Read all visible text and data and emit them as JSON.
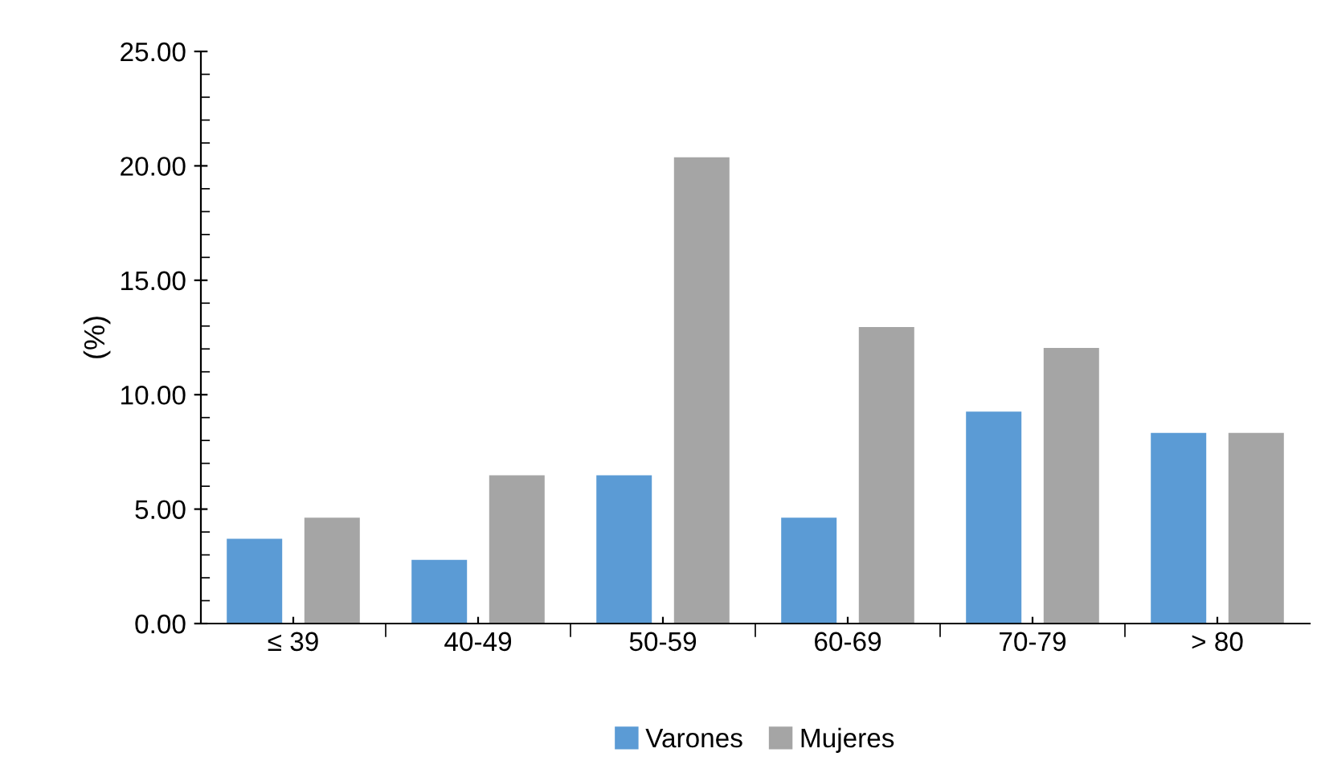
{
  "chart_data": {
    "type": "bar",
    "ylabel": "(%)",
    "categories": [
      "≤ 39",
      "40-49",
      "50-59",
      "60-69",
      "70-79",
      "> 80"
    ],
    "series": [
      {
        "name": "Varones",
        "color": "#5b9bd5",
        "values": [
          3.7,
          2.78,
          6.48,
          4.63,
          9.26,
          8.33
        ]
      },
      {
        "name": "Mujeres",
        "color": "#a5a5a5",
        "values": [
          4.63,
          6.48,
          20.37,
          12.96,
          12.04,
          8.33
        ]
      }
    ],
    "ylim": [
      0,
      25
    ],
    "yticks": [
      {
        "value": 0,
        "label": "0.00"
      },
      {
        "value": 5,
        "label": "5.00"
      },
      {
        "value": 10,
        "label": "10.00"
      },
      {
        "value": 15,
        "label": "15.00"
      },
      {
        "value": 20,
        "label": "20.00"
      },
      {
        "value": 25,
        "label": "25.00"
      }
    ],
    "grid": false,
    "legend": "bottom"
  }
}
